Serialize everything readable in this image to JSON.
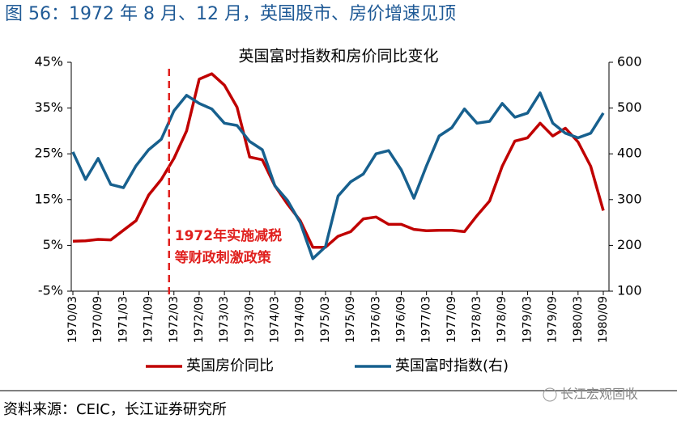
{
  "header": {
    "title": "图 56：1972 年 8 月、12 月，英国股市、房价增速见顶"
  },
  "chart_data": {
    "type": "line",
    "title": "英国富时指数和房价同比变化",
    "categories": [
      "1970/03",
      null,
      "1970/09",
      null,
      "1971/03",
      null,
      "1971/09",
      null,
      "1972/03",
      null,
      "1972/09",
      null,
      "1973/03",
      null,
      "1973/09",
      null,
      "1974/03",
      null,
      "1974/09",
      null,
      "1975/03",
      null,
      "1975/09",
      null,
      "1976/03",
      null,
      "1976/09",
      null,
      "1977/03",
      null,
      "1977/09",
      null,
      "1978/03",
      null,
      "1978/09",
      null,
      "1979/03",
      null,
      "1979/09",
      null,
      "1980/03",
      null,
      "1980/09"
    ],
    "series": [
      {
        "name": "英国房价同比",
        "color": "#c00000",
        "values": [
          5.9,
          6.0,
          6.3,
          6.2,
          8.3,
          10.4,
          16,
          19.4,
          24,
          30,
          41.3,
          42.5,
          40,
          35.2,
          24.3,
          23.7,
          18,
          14,
          10.4,
          4.6,
          4.6,
          7,
          8,
          10.8,
          11.2,
          9.6,
          9.6,
          8.5,
          8.2,
          8.3,
          8.3,
          8,
          11.5,
          14.7,
          22.3,
          27.8,
          28.5,
          31.7,
          28.9,
          30.6,
          27.6,
          22.3,
          12.6
        ]
      },
      {
        "name": "英国富时指数(右)",
        "color": "#17608e",
        "axis": "y2",
        "values": [
          404,
          344,
          390,
          333,
          326,
          374,
          409,
          432,
          494,
          528,
          510,
          498,
          467,
          462,
          427,
          409,
          330,
          298,
          250,
          171,
          197,
          308,
          339,
          356,
          400,
          407,
          365,
          303,
          374,
          439,
          457,
          498,
          467,
          471,
          510,
          480,
          489,
          533,
          467,
          445,
          435,
          445,
          489
        ]
      }
    ],
    "ylim": [
      -5,
      45
    ],
    "yticks": [
      {
        "value": -5,
        "label": "-5%"
      },
      {
        "value": 5,
        "label": "5%"
      },
      {
        "value": 15,
        "label": "15%"
      },
      {
        "value": 25,
        "label": "25%"
      },
      {
        "value": 35,
        "label": "35%"
      },
      {
        "value": 45,
        "label": "45%"
      }
    ],
    "y2lim": [
      100,
      600
    ],
    "y2ticks": [
      100,
      200,
      300,
      400,
      500,
      600
    ],
    "annotation": {
      "x": "1972/03",
      "color": "#e0201e",
      "text": [
        "1972年实施减税",
        "等财政刺激政策"
      ]
    }
  },
  "footer": {
    "source": "资料来源：CEIC，长江证券研究所",
    "watermark": "长江宏观固收"
  }
}
